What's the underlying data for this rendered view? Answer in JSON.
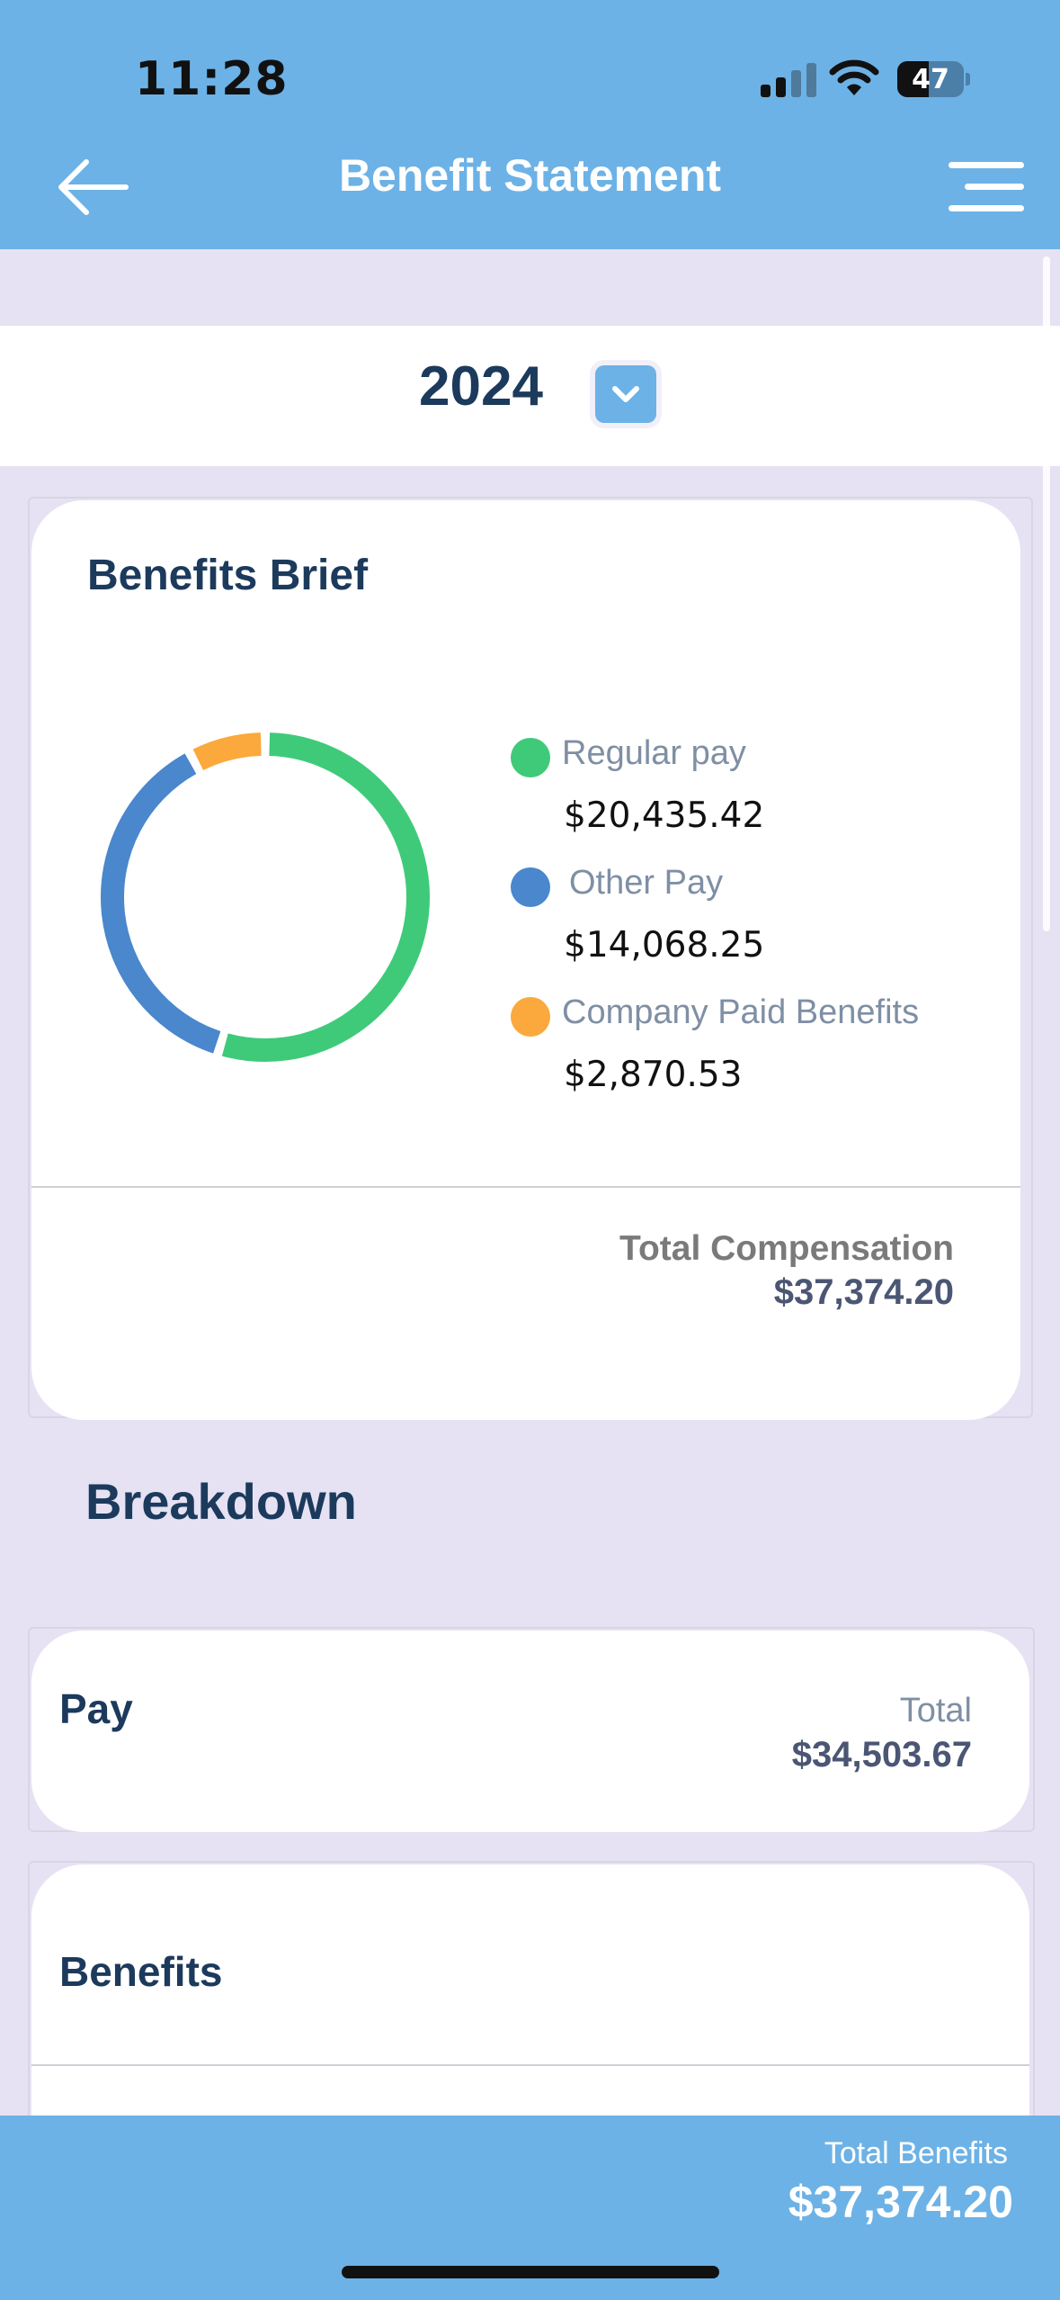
{
  "status_bar": {
    "time": "11:28",
    "battery": "47"
  },
  "header": {
    "title": "Benefit Statement"
  },
  "year_selector": {
    "selected": "2024"
  },
  "benefits_brief": {
    "title": "Benefits Brief",
    "legend": [
      {
        "label": "Regular pay",
        "value": "$20,435.42",
        "color": "#3fca7a"
      },
      {
        "label": "Other Pay",
        "value": "$14,068.25",
        "color": "#4a87cc"
      },
      {
        "label": "Company Paid Benefits",
        "value": "$2,870.53",
        "color": "#fba93c"
      }
    ],
    "total_label": "Total Compensation",
    "total_value": "$37,374.20"
  },
  "chart_data": {
    "type": "pie",
    "categories": [
      "Regular pay",
      "Other Pay",
      "Company Paid Benefits"
    ],
    "values": [
      20435.42,
      14068.25,
      2870.53
    ],
    "colors": [
      "#3fca7a",
      "#4a87cc",
      "#fba93c"
    ]
  },
  "breakdown": {
    "title": "Breakdown",
    "pay": {
      "title": "Pay",
      "total_label": "Total",
      "total_value": "$34,503.67"
    },
    "benefits": {
      "title": "Benefits"
    }
  },
  "footer": {
    "total_label": "Total Benefits",
    "total_value": "$37,374.20"
  }
}
